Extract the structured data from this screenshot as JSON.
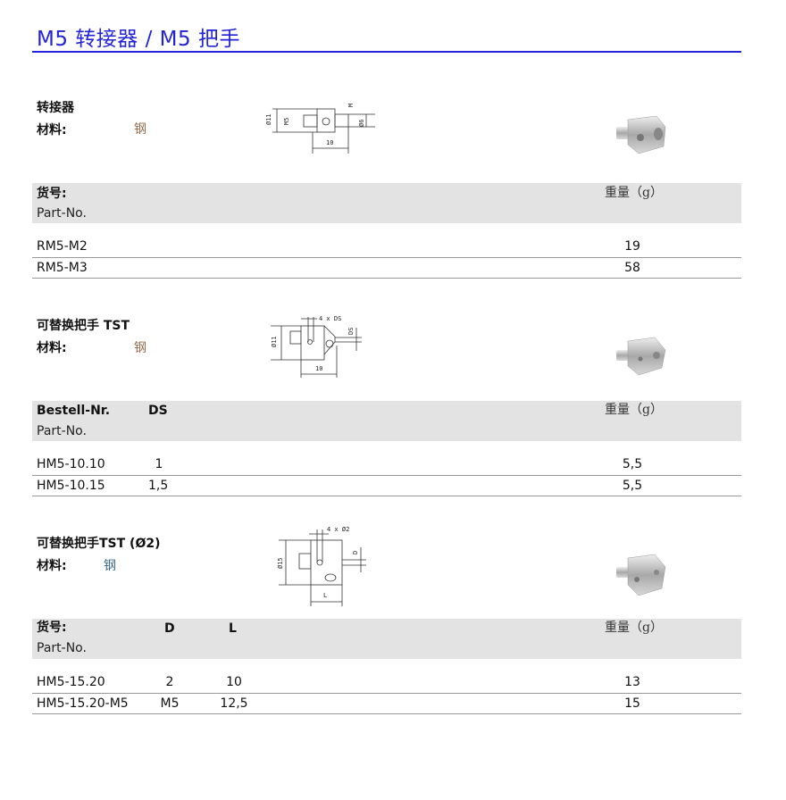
{
  "title": "M5 转接器 / M5 把手",
  "colors": {
    "accent": "#2323d8",
    "band": "#e3e3e3",
    "material": "#9a6a4a"
  },
  "sections": [
    {
      "heading": "转接器",
      "material_label": "材料:",
      "material": "钢",
      "drawing": {
        "dims": [
          "Ø11",
          "M5",
          "M",
          "Ø6",
          "10"
        ]
      },
      "columns": {
        "part_label": "货号:",
        "part_sub": "Part-No.",
        "weight": "重量（g）"
      },
      "rows": [
        {
          "part": "RM5-M2",
          "weight": "19"
        },
        {
          "part": "RM5-M3",
          "weight": "58"
        }
      ]
    },
    {
      "heading": "可替换把手 TST",
      "material_label": "材料:",
      "material": "钢",
      "drawing": {
        "dims": [
          "Ø11",
          "4 x DS",
          "DS",
          "10"
        ]
      },
      "columns": {
        "part_label": "Bestell-Nr.",
        "part_sub": "Part-No.",
        "col2": "DS",
        "weight": "重量（g）"
      },
      "rows": [
        {
          "part": "HM5-10.10",
          "ds": "1",
          "weight": "5,5"
        },
        {
          "part": "HM5-10.15",
          "ds": "1,5",
          "weight": "5,5"
        }
      ]
    },
    {
      "heading": "可替换把手TST (Ø2)",
      "material_label": "材料:",
      "material": "钢",
      "drawing": {
        "dims": [
          "Ø15",
          "4 x Ø2",
          "D",
          "L"
        ]
      },
      "columns": {
        "part_label": "货号:",
        "part_sub": "Part-No.",
        "col2": "D",
        "col3": "L",
        "weight": "重量（g）"
      },
      "rows": [
        {
          "part": "HM5-15.20",
          "d": "2",
          "l": "10",
          "weight": "13"
        },
        {
          "part": "HM5-15.20-M5",
          "d": "M5",
          "l": "12,5",
          "weight": "15"
        }
      ]
    }
  ]
}
